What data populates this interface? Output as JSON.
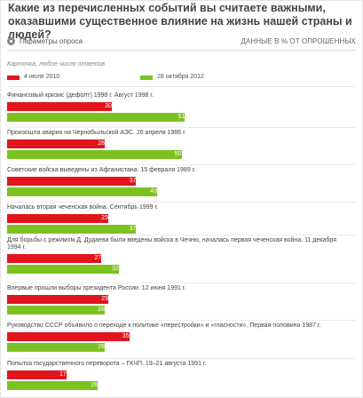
{
  "question": "Какие из перечисленных событий вы считаете важными, оказавшими существенное влияние на жизнь нашей страны и людей?",
  "params_label": "Параметры опроса",
  "units_label": "ДАННЫЕ В % ОТ ОПРОШЕННЫХ",
  "note": "Карточка, любое число ответов",
  "colors": {
    "red": "#e2141c",
    "green": "#7cc21e",
    "gear": "#8a8a8a"
  },
  "chart_data": {
    "type": "bar",
    "orientation": "horizontal",
    "xlim": [
      0,
      100
    ],
    "categories": [
      "Финансовый кризис (дефолт) 1998 г. Август 1998 г.",
      "Произошла авария на Чернобыльской АЭС. 26 апреля 1986 г.",
      "Советские войска выведены из Афганистана. 15 февраля 1989 г.",
      "Началась вторая чеченская война. Сентябрь 1999 г.",
      "Для борьбы с режимом Д. Дудаева были введены войска в Чечню, началась первая чеченская война. 11 декабря 1994 г.",
      "Впервые прошли выборы президента России. 12 июня 1991 г.",
      "Руководство СССР объявило о переходе к политике «перестройки» и «гласности». Первая половина 1987 г.",
      "Попытка государственного переворота – ГКЧП. 19–21 августа 1991 г."
    ],
    "series": [
      {
        "name": "4 июля 2010",
        "color": "#e2141c",
        "values": [
          30,
          28,
          37,
          29,
          27,
          29,
          35,
          17
        ]
      },
      {
        "name": "28 октября 2012",
        "color": "#7cc21e",
        "values": [
          51,
          50,
          43,
          37,
          32,
          28,
          28,
          26
        ]
      }
    ]
  }
}
